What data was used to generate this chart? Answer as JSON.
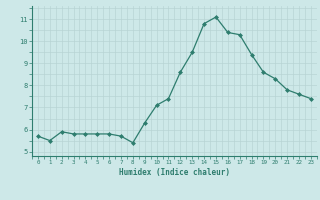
{
  "x": [
    0,
    1,
    2,
    3,
    4,
    5,
    6,
    7,
    8,
    9,
    10,
    11,
    12,
    13,
    14,
    15,
    16,
    17,
    18,
    19,
    20,
    21,
    22,
    23
  ],
  "y": [
    5.7,
    5.5,
    5.9,
    5.8,
    5.8,
    5.8,
    5.8,
    5.7,
    5.4,
    6.3,
    7.1,
    7.4,
    8.6,
    9.5,
    10.8,
    11.1,
    10.4,
    10.3,
    9.4,
    8.6,
    8.3,
    7.8,
    7.6,
    7.4
  ],
  "xlim": [
    -0.5,
    23.5
  ],
  "ylim": [
    4.8,
    11.6
  ],
  "yticks": [
    5,
    6,
    7,
    8,
    9,
    10,
    11
  ],
  "xticks": [
    0,
    1,
    2,
    3,
    4,
    5,
    6,
    7,
    8,
    9,
    10,
    11,
    12,
    13,
    14,
    15,
    16,
    17,
    18,
    19,
    20,
    21,
    22,
    23
  ],
  "xlabel": "Humidex (Indice chaleur)",
  "line_color": "#2e7d6e",
  "marker_color": "#2e7d6e",
  "bg_color": "#cde8e8",
  "grid_color": "#b8d4d4",
  "tick_label_color": "#2e7d6e",
  "axis_label_color": "#2e7d6e"
}
